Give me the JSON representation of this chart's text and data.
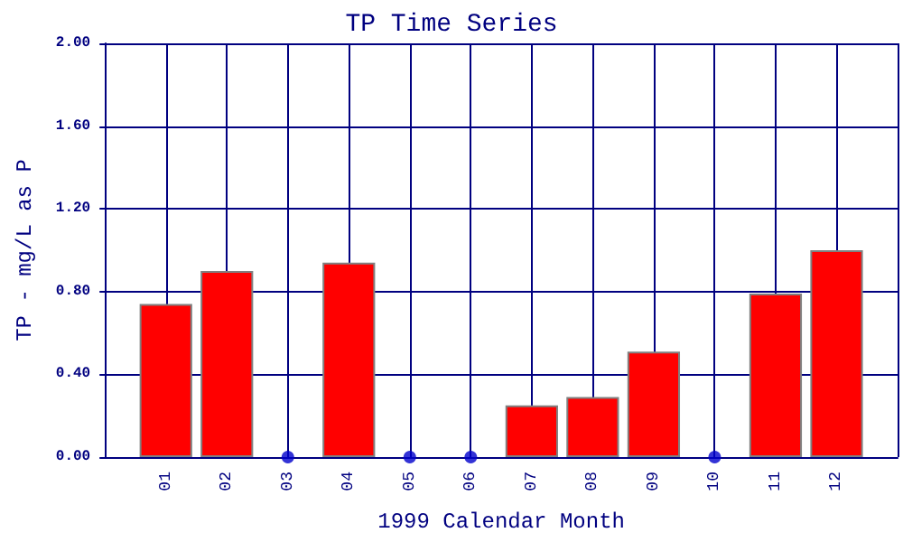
{
  "chart_data": {
    "type": "bar",
    "title": "TP Time Series",
    "xlabel": "1999 Calendar Month",
    "ylabel": "TP - mg/L as P",
    "categories": [
      "01",
      "02",
      "03",
      "04",
      "05",
      "06",
      "07",
      "08",
      "09",
      "10",
      "11",
      "12"
    ],
    "series": [
      {
        "color": "#ff0000",
        "values": [
          0.74,
          0.9,
          null,
          0.94,
          null,
          null,
          0.25,
          0.29,
          0.51,
          null,
          0.79,
          1.0
        ]
      },
      {
        "type": "scatter",
        "color": "#0000cc",
        "marker": "circle",
        "x": [
          "03",
          "05",
          "06",
          "10"
        ],
        "values": [
          0,
          0,
          0,
          0
        ]
      }
    ],
    "ylim": [
      0,
      2
    ],
    "yticks": [
      {
        "value": 0,
        "label": "0.00"
      },
      {
        "value": 0.4,
        "label": "0.40"
      },
      {
        "value": 0.8,
        "label": "0.80"
      },
      {
        "value": 1.2,
        "label": "1.20"
      },
      {
        "value": 1.6,
        "label": "1.60"
      },
      {
        "value": 2,
        "label": "2.00"
      }
    ],
    "grid": true
  }
}
